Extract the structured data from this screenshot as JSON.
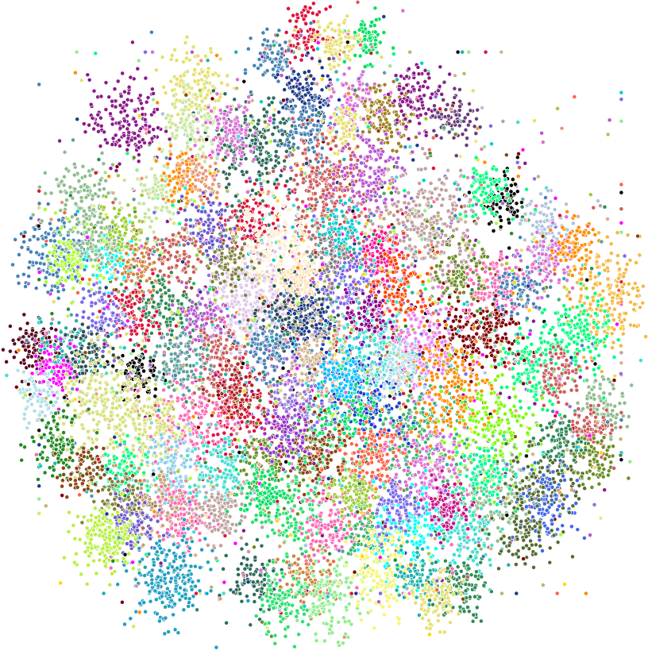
{
  "chart_data": {
    "type": "scatter",
    "title": "",
    "xlabel": "",
    "ylabel": "",
    "axes_visible": false,
    "grid": false,
    "legend": false,
    "background": "#ffffff",
    "point_style": {
      "stroke": "#ffffff",
      "shape": "circle"
    },
    "approx_total_points": 9000,
    "palette": [
      "#2e8b57",
      "#8b1a89",
      "#e6e06c",
      "#4682b4",
      "#cd5c5c",
      "#90ee90",
      "#da70d6",
      "#20b2aa",
      "#ff69b4",
      "#1e3a8a",
      "#8b4513",
      "#00ff7f",
      "#9acd32",
      "#7b68ee",
      "#ff6347",
      "#bdb76b",
      "#5f9ea0",
      "#f0e68c",
      "#00ced1",
      "#dc143c",
      "#6b8e23",
      "#e9967a",
      "#b0c4de",
      "#d2b48c",
      "#3cb371",
      "#ff00ff",
      "#228b22",
      "#800000",
      "#000000",
      "#ffd700",
      "#adff2f",
      "#40e0d0",
      "#ba55d3",
      "#ff8c00",
      "#c0a0a0",
      "#9370db"
    ],
    "clusters": [
      {
        "x": 0.18,
        "y": 0.83,
        "n": 170,
        "spread": 0.035,
        "color": "#8b1a89"
      },
      {
        "x": 0.29,
        "y": 0.89,
        "n": 140,
        "spread": 0.03,
        "color": "#e6e06c"
      },
      {
        "x": 0.39,
        "y": 0.79,
        "n": 220,
        "spread": 0.04,
        "color": "#2e6b5a"
      },
      {
        "x": 0.29,
        "y": 0.81,
        "n": 120,
        "spread": 0.03,
        "color": "#c8e6a0"
      },
      {
        "x": 0.35,
        "y": 0.82,
        "n": 100,
        "spread": 0.025,
        "color": "#da70d6"
      },
      {
        "x": 0.47,
        "y": 0.97,
        "n": 90,
        "spread": 0.02,
        "color": "#dc143c"
      },
      {
        "x": 0.57,
        "y": 0.96,
        "n": 70,
        "spread": 0.018,
        "color": "#00e060"
      },
      {
        "x": 0.52,
        "y": 0.95,
        "n": 90,
        "spread": 0.02,
        "color": "#e6e06c"
      },
      {
        "x": 0.42,
        "y": 0.93,
        "n": 80,
        "spread": 0.02,
        "color": "#4682b4"
      },
      {
        "x": 0.47,
        "y": 0.87,
        "n": 110,
        "spread": 0.025,
        "color": "#1e3a8a"
      },
      {
        "x": 0.55,
        "y": 0.86,
        "n": 90,
        "spread": 0.022,
        "color": "#da70d6"
      },
      {
        "x": 0.6,
        "y": 0.84,
        "n": 110,
        "spread": 0.025,
        "color": "#a08020"
      },
      {
        "x": 0.65,
        "y": 0.87,
        "n": 100,
        "spread": 0.025,
        "color": "#8b1a89"
      },
      {
        "x": 0.71,
        "y": 0.84,
        "n": 80,
        "spread": 0.022,
        "color": "#6a3d7a"
      },
      {
        "x": 0.47,
        "y": 0.82,
        "n": 100,
        "spread": 0.025,
        "color": "#4682b4"
      },
      {
        "x": 0.53,
        "y": 0.82,
        "n": 70,
        "spread": 0.02,
        "color": "#e6e06c"
      },
      {
        "x": 0.5,
        "y": 0.72,
        "n": 250,
        "spread": 0.04,
        "color": "#cd5c5c"
      },
      {
        "x": 0.58,
        "y": 0.75,
        "n": 150,
        "spread": 0.035,
        "color": "#ba55d3"
      },
      {
        "x": 0.67,
        "y": 0.66,
        "n": 280,
        "spread": 0.045,
        "color": "#c0a0a0"
      },
      {
        "x": 0.79,
        "y": 0.7,
        "n": 80,
        "spread": 0.022,
        "color": "#000000"
      },
      {
        "x": 0.76,
        "y": 0.72,
        "n": 90,
        "spread": 0.022,
        "color": "#00ff7f"
      },
      {
        "x": 0.86,
        "y": 0.66,
        "n": 90,
        "spread": 0.025,
        "color": "#b0c4de"
      },
      {
        "x": 0.96,
        "y": 0.55,
        "n": 220,
        "spread": 0.04,
        "color": "#f4b942"
      },
      {
        "x": 0.11,
        "y": 0.71,
        "n": 130,
        "spread": 0.03,
        "color": "#8fbc8f"
      },
      {
        "x": 0.06,
        "y": 0.62,
        "n": 170,
        "spread": 0.035,
        "color": "#4682b4"
      },
      {
        "x": 0.1,
        "y": 0.61,
        "n": 110,
        "spread": 0.025,
        "color": "#adff2f"
      },
      {
        "x": 0.16,
        "y": 0.61,
        "n": 90,
        "spread": 0.022,
        "color": "#00ffff"
      },
      {
        "x": 0.2,
        "y": 0.6,
        "n": 100,
        "spread": 0.025,
        "color": "#cd853f"
      },
      {
        "x": 0.23,
        "y": 0.71,
        "n": 90,
        "spread": 0.025,
        "color": "#c8e6a0"
      },
      {
        "x": 0.27,
        "y": 0.74,
        "n": 80,
        "spread": 0.02,
        "color": "#ff8c00"
      },
      {
        "x": 0.3,
        "y": 0.74,
        "n": 60,
        "spread": 0.018,
        "color": "#e9967a"
      },
      {
        "x": 0.38,
        "y": 0.67,
        "n": 110,
        "spread": 0.025,
        "color": "#dc143c"
      },
      {
        "x": 0.42,
        "y": 0.63,
        "n": 150,
        "spread": 0.035,
        "color": "#fff0d0"
      },
      {
        "x": 0.38,
        "y": 0.54,
        "n": 260,
        "spread": 0.04,
        "color": "#e0c8e8"
      },
      {
        "x": 0.45,
        "y": 0.53,
        "n": 150,
        "spread": 0.03,
        "color": "#2f4f4f"
      },
      {
        "x": 0.48,
        "y": 0.51,
        "n": 110,
        "spread": 0.025,
        "color": "#1e3a8a"
      },
      {
        "x": 0.25,
        "y": 0.53,
        "n": 140,
        "spread": 0.035,
        "color": "#2e8b57"
      },
      {
        "x": 0.3,
        "y": 0.52,
        "n": 90,
        "spread": 0.025,
        "color": "#ba55d3"
      },
      {
        "x": 0.19,
        "y": 0.52,
        "n": 90,
        "spread": 0.025,
        "color": "#dc143c"
      },
      {
        "x": 0.14,
        "y": 0.52,
        "n": 80,
        "spread": 0.022,
        "color": "#7b68ee"
      },
      {
        "x": 0.03,
        "y": 0.47,
        "n": 110,
        "spread": 0.025,
        "color": "#5a0a1e"
      },
      {
        "x": 0.08,
        "y": 0.47,
        "n": 80,
        "spread": 0.022,
        "color": "#20b2aa"
      },
      {
        "x": 0.07,
        "y": 0.44,
        "n": 90,
        "spread": 0.022,
        "color": "#ff00ff"
      },
      {
        "x": 0.12,
        "y": 0.46,
        "n": 90,
        "spread": 0.022,
        "color": "#2f4f4f"
      },
      {
        "x": 0.2,
        "y": 0.43,
        "n": 80,
        "spread": 0.02,
        "color": "#000000"
      },
      {
        "x": 0.04,
        "y": 0.39,
        "n": 70,
        "spread": 0.02,
        "color": "#b0e0e6"
      },
      {
        "x": 0.15,
        "y": 0.37,
        "n": 240,
        "spread": 0.045,
        "color": "#d8e07a"
      },
      {
        "x": 0.07,
        "y": 0.32,
        "n": 110,
        "spread": 0.025,
        "color": "#228b22"
      },
      {
        "x": 0.66,
        "y": 0.47,
        "n": 180,
        "spread": 0.035,
        "color": "#ee82ee"
      },
      {
        "x": 0.73,
        "y": 0.49,
        "n": 120,
        "spread": 0.03,
        "color": "#800000"
      },
      {
        "x": 0.91,
        "y": 0.49,
        "n": 130,
        "spread": 0.03,
        "color": "#00ff7f"
      },
      {
        "x": 0.84,
        "y": 0.44,
        "n": 130,
        "spread": 0.03,
        "color": "#00ff7f"
      },
      {
        "x": 0.88,
        "y": 0.43,
        "n": 80,
        "spread": 0.022,
        "color": "#cd5c5c"
      },
      {
        "x": 0.95,
        "y": 0.38,
        "n": 90,
        "spread": 0.022,
        "color": "#8fbc8f"
      },
      {
        "x": 0.93,
        "y": 0.34,
        "n": 80,
        "spread": 0.02,
        "color": "#cd5c5c"
      },
      {
        "x": 0.76,
        "y": 0.33,
        "n": 220,
        "spread": 0.045,
        "color": "#7cfc00"
      },
      {
        "x": 0.65,
        "y": 0.33,
        "n": 200,
        "spread": 0.045,
        "color": "#3cb371"
      },
      {
        "x": 0.57,
        "y": 0.39,
        "n": 180,
        "spread": 0.04,
        "color": "#1a3fd0"
      },
      {
        "x": 0.53,
        "y": 0.35,
        "n": 150,
        "spread": 0.035,
        "color": "#00e060"
      },
      {
        "x": 0.45,
        "y": 0.38,
        "n": 140,
        "spread": 0.035,
        "color": "#9370db"
      },
      {
        "x": 0.36,
        "y": 0.37,
        "n": 160,
        "spread": 0.035,
        "color": "#dc143c"
      },
      {
        "x": 0.29,
        "y": 0.36,
        "n": 150,
        "spread": 0.035,
        "color": "#ff69b4"
      },
      {
        "x": 0.23,
        "y": 0.34,
        "n": 130,
        "spread": 0.03,
        "color": "#d8e07a"
      },
      {
        "x": 0.25,
        "y": 0.28,
        "n": 120,
        "spread": 0.03,
        "color": "#87ceeb"
      },
      {
        "x": 0.33,
        "y": 0.28,
        "n": 120,
        "spread": 0.03,
        "color": "#40e0d0"
      },
      {
        "x": 0.42,
        "y": 0.29,
        "n": 130,
        "spread": 0.03,
        "color": "#6b8e23"
      },
      {
        "x": 0.49,
        "y": 0.3,
        "n": 130,
        "spread": 0.03,
        "color": "#8b4513"
      },
      {
        "x": 0.58,
        "y": 0.29,
        "n": 160,
        "spread": 0.035,
        "color": "#ff6347"
      },
      {
        "x": 0.67,
        "y": 0.27,
        "n": 160,
        "spread": 0.035,
        "color": "#da70d6"
      },
      {
        "x": 0.78,
        "y": 0.24,
        "n": 150,
        "spread": 0.035,
        "color": "#8fbc8f"
      },
      {
        "x": 0.87,
        "y": 0.27,
        "n": 110,
        "spread": 0.03,
        "color": "#556b2f"
      },
      {
        "x": 0.86,
        "y": 0.22,
        "n": 120,
        "spread": 0.03,
        "color": "#4169e1"
      },
      {
        "x": 0.94,
        "y": 0.29,
        "n": 70,
        "spread": 0.02,
        "color": "#6b8e23"
      },
      {
        "x": 0.17,
        "y": 0.27,
        "n": 100,
        "spread": 0.025,
        "color": "#00ff7f"
      },
      {
        "x": 0.11,
        "y": 0.27,
        "n": 80,
        "spread": 0.02,
        "color": "#8b4513"
      },
      {
        "x": 0.18,
        "y": 0.23,
        "n": 110,
        "spread": 0.025,
        "color": "#808040"
      },
      {
        "x": 0.25,
        "y": 0.22,
        "n": 120,
        "spread": 0.03,
        "color": "#c8a078"
      },
      {
        "x": 0.19,
        "y": 0.19,
        "n": 90,
        "spread": 0.022,
        "color": "#6a5acd"
      },
      {
        "x": 0.14,
        "y": 0.17,
        "n": 110,
        "spread": 0.025,
        "color": "#b8f040"
      },
      {
        "x": 0.27,
        "y": 0.2,
        "n": 100,
        "spread": 0.025,
        "color": "#ff69b4"
      },
      {
        "x": 0.33,
        "y": 0.21,
        "n": 110,
        "spread": 0.025,
        "color": "#c0a0a0"
      },
      {
        "x": 0.45,
        "y": 0.21,
        "n": 150,
        "spread": 0.035,
        "color": "#2ee070"
      },
      {
        "x": 0.51,
        "y": 0.19,
        "n": 130,
        "spread": 0.03,
        "color": "#ff69b4"
      },
      {
        "x": 0.57,
        "y": 0.17,
        "n": 90,
        "spread": 0.025,
        "color": "#3cb371"
      },
      {
        "x": 0.64,
        "y": 0.18,
        "n": 150,
        "spread": 0.035,
        "color": "#00ffff"
      },
      {
        "x": 0.73,
        "y": 0.17,
        "n": 120,
        "spread": 0.03,
        "color": "#40e0d0"
      },
      {
        "x": 0.82,
        "y": 0.19,
        "n": 110,
        "spread": 0.03,
        "color": "#556b2f"
      },
      {
        "x": 0.25,
        "y": 0.1,
        "n": 230,
        "spread": 0.035,
        "color": "#20a0c0"
      },
      {
        "x": 0.39,
        "y": 0.1,
        "n": 100,
        "spread": 0.025,
        "color": "#2e6b5a"
      },
      {
        "x": 0.47,
        "y": 0.1,
        "n": 100,
        "spread": 0.025,
        "color": "#cd853f"
      },
      {
        "x": 0.51,
        "y": 0.07,
        "n": 130,
        "spread": 0.03,
        "color": "#90ee90"
      },
      {
        "x": 0.6,
        "y": 0.12,
        "n": 170,
        "spread": 0.035,
        "color": "#f5f576"
      },
      {
        "x": 0.65,
        "y": 0.11,
        "n": 80,
        "spread": 0.022,
        "color": "#20b2aa"
      },
      {
        "x": 0.72,
        "y": 0.09,
        "n": 110,
        "spread": 0.025,
        "color": "#2e8b57"
      },
      {
        "x": 0.68,
        "y": 0.07,
        "n": 90,
        "spread": 0.022,
        "color": "#e6e06c"
      },
      {
        "x": 0.43,
        "y": 0.06,
        "n": 100,
        "spread": 0.025,
        "color": "#2ee070"
      },
      {
        "x": 0.16,
        "y": 0.16,
        "n": 70,
        "spread": 0.02,
        "color": "#b8f040"
      },
      {
        "x": 0.59,
        "y": 0.62,
        "n": 100,
        "spread": 0.025,
        "color": "#ff1493"
      },
      {
        "x": 0.62,
        "y": 0.57,
        "n": 120,
        "spread": 0.03,
        "color": "#ff4500"
      },
      {
        "x": 0.54,
        "y": 0.57,
        "n": 110,
        "spread": 0.028,
        "color": "#7b68ee"
      },
      {
        "x": 0.49,
        "y": 0.45,
        "n": 120,
        "spread": 0.03,
        "color": "#d2b48c"
      },
      {
        "x": 0.41,
        "y": 0.47,
        "n": 100,
        "spread": 0.025,
        "color": "#4682b4"
      },
      {
        "x": 0.33,
        "y": 0.45,
        "n": 110,
        "spread": 0.028,
        "color": "#cd5c5c"
      },
      {
        "x": 0.27,
        "y": 0.45,
        "n": 100,
        "spread": 0.025,
        "color": "#5f9ea0"
      },
      {
        "x": 0.58,
        "y": 0.47,
        "n": 120,
        "spread": 0.03,
        "color": "#40e0d0"
      },
      {
        "x": 0.7,
        "y": 0.41,
        "n": 160,
        "spread": 0.04,
        "color": "#ff8c00"
      },
      {
        "x": 0.77,
        "y": 0.57,
        "n": 130,
        "spread": 0.03,
        "color": "#ff69b4"
      },
      {
        "x": 0.82,
        "y": 0.56,
        "n": 90,
        "spread": 0.025,
        "color": "#4682b4"
      },
      {
        "x": 0.72,
        "y": 0.59,
        "n": 80,
        "spread": 0.022,
        "color": "#6b8e23"
      },
      {
        "x": 0.86,
        "y": 0.61,
        "n": 90,
        "spread": 0.025,
        "color": "#da70d6"
      },
      {
        "x": 0.9,
        "y": 0.63,
        "n": 80,
        "spread": 0.022,
        "color": "#ff8c00"
      },
      {
        "x": 0.78,
        "y": 0.5,
        "n": 80,
        "spread": 0.022,
        "color": "#800000"
      },
      {
        "x": 0.34,
        "y": 0.61,
        "n": 100,
        "spread": 0.025,
        "color": "#808040"
      },
      {
        "x": 0.31,
        "y": 0.66,
        "n": 90,
        "spread": 0.022,
        "color": "#6a5acd"
      },
      {
        "x": 0.26,
        "y": 0.62,
        "n": 80,
        "spread": 0.022,
        "color": "#cd5c5c"
      },
      {
        "x": 0.17,
        "y": 0.66,
        "n": 80,
        "spread": 0.022,
        "color": "#9acd32"
      },
      {
        "x": 0.13,
        "y": 0.64,
        "n": 70,
        "spread": 0.02,
        "color": "#8fbc8f"
      },
      {
        "x": 0.36,
        "y": 0.4,
        "n": 80,
        "spread": 0.022,
        "color": "#b22222"
      },
      {
        "x": 0.44,
        "y": 0.33,
        "n": 90,
        "spread": 0.022,
        "color": "#9932cc"
      },
      {
        "x": 0.53,
        "y": 0.42,
        "n": 90,
        "spread": 0.022,
        "color": "#00bfff"
      },
      {
        "x": 0.61,
        "y": 0.43,
        "n": 90,
        "spread": 0.022,
        "color": "#b0e0e6"
      },
      {
        "x": 0.4,
        "y": 0.24,
        "n": 80,
        "spread": 0.02,
        "color": "#00e060"
      },
      {
        "x": 0.55,
        "y": 0.24,
        "n": 90,
        "spread": 0.022,
        "color": "#9acd32"
      },
      {
        "x": 0.62,
        "y": 0.22,
        "n": 90,
        "spread": 0.022,
        "color": "#7b68ee"
      },
      {
        "x": 0.7,
        "y": 0.22,
        "n": 90,
        "spread": 0.022,
        "color": "#c71585"
      },
      {
        "x": 0.76,
        "y": 0.27,
        "n": 80,
        "spread": 0.022,
        "color": "#00fa9a"
      },
      {
        "x": 0.88,
        "y": 0.32,
        "n": 70,
        "spread": 0.02,
        "color": "#2e8b57"
      },
      {
        "x": 0.51,
        "y": 0.62,
        "n": 90,
        "spread": 0.022,
        "color": "#808080"
      },
      {
        "x": 0.46,
        "y": 0.58,
        "n": 80,
        "spread": 0.02,
        "color": "#ffe4b5"
      },
      {
        "x": 0.57,
        "y": 0.52,
        "n": 80,
        "spread": 0.02,
        "color": "#8b008b"
      },
      {
        "x": 0.53,
        "y": 0.66,
        "n": 70,
        "spread": 0.02,
        "color": "#00ced1"
      }
    ],
    "background_points": {
      "n": 1800,
      "x_range": [
        0.04,
        0.98
      ],
      "y_range": [
        0.08,
        0.94
      ]
    }
  }
}
